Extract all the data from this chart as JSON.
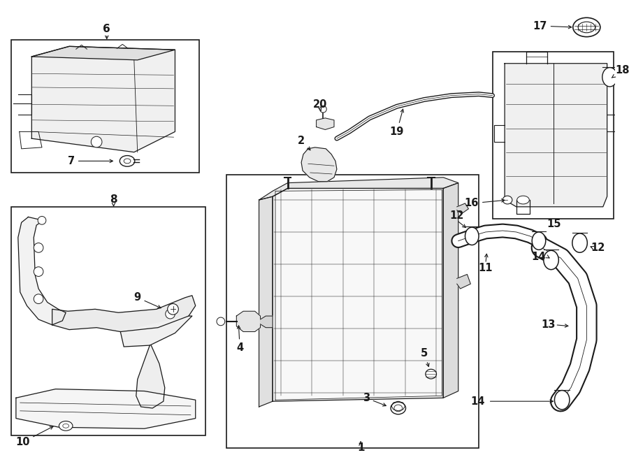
{
  "bg_color": "#ffffff",
  "line_color": "#1a1a1a",
  "fig_width": 9.0,
  "fig_height": 6.61,
  "dpi": 100,
  "lw": 0.9
}
